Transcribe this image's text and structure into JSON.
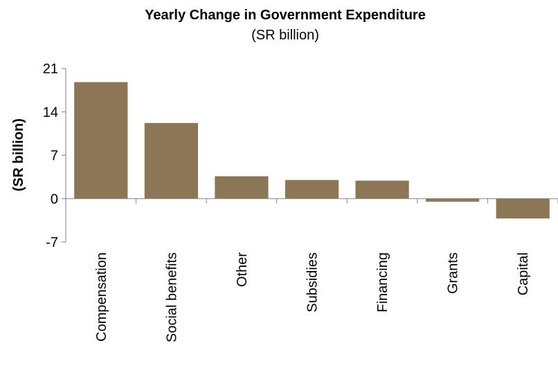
{
  "chart_data": {
    "type": "bar",
    "title": "Yearly Change in Government Expenditure",
    "subtitle": "(SR billion)",
    "ylabel": "(SR billion)",
    "xlabel": "",
    "categories": [
      "Compensation",
      "Social benefits",
      "Other",
      "Subsidies",
      "Financing",
      "Grants",
      "Capital"
    ],
    "values": [
      18.8,
      12.2,
      3.6,
      3.0,
      2.9,
      -0.5,
      -3.2
    ],
    "yticks": [
      -7,
      0,
      7,
      14,
      21
    ],
    "ytick_labels": [
      "-7",
      "0",
      "7",
      "14",
      "21"
    ],
    "ylim": [
      -7,
      21
    ],
    "grid": false,
    "legend": "none",
    "bar_color": "#8b7755"
  }
}
